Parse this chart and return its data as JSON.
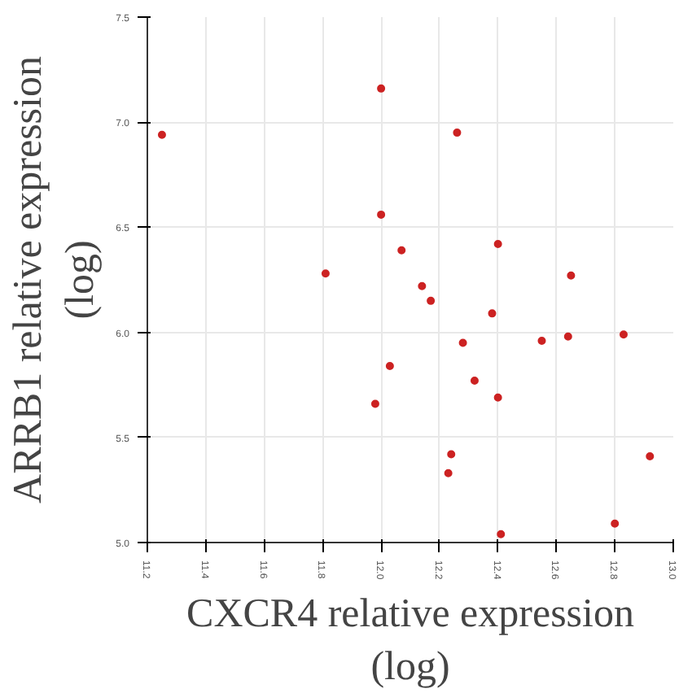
{
  "chart_data": {
    "type": "scatter",
    "xlabel": "CXCR4 relative expression\n(log)",
    "ylabel": "ARRB1 relative expression\n(log)",
    "x": [
      11.25,
      12.0,
      12.26,
      12.0,
      12.07,
      11.81,
      12.4,
      12.14,
      12.65,
      12.17,
      12.38,
      12.28,
      12.55,
      12.64,
      12.83,
      12.03,
      12.32,
      11.98,
      12.4,
      12.24,
      12.23,
      12.92,
      12.8,
      12.41
    ],
    "values": [
      6.94,
      7.16,
      6.95,
      6.56,
      6.39,
      6.28,
      6.42,
      6.22,
      6.27,
      6.15,
      6.09,
      5.95,
      5.96,
      5.98,
      5.99,
      5.84,
      5.77,
      5.66,
      5.69,
      5.42,
      5.33,
      5.41,
      5.09,
      5.04
    ],
    "color": "#cc2222",
    "marker": "circle",
    "xlim": [
      11.2,
      13.0
    ],
    "ylim": [
      5.0,
      7.5
    ],
    "xticks": [
      {
        "value": 11.2,
        "label": "11.2"
      },
      {
        "value": 11.4,
        "label": "11.4"
      },
      {
        "value": 11.6,
        "label": "11.6"
      },
      {
        "value": 11.8,
        "label": "11.8"
      },
      {
        "value": 12.0,
        "label": "12.0"
      },
      {
        "value": 12.2,
        "label": "12.2"
      },
      {
        "value": 12.4,
        "label": "12.4"
      },
      {
        "value": 12.6,
        "label": "12.6"
      },
      {
        "value": 12.8,
        "label": "12.8"
      },
      {
        "value": 13.0,
        "label": "13.0"
      }
    ],
    "yticks": [
      {
        "value": 5.0,
        "label": "5.0"
      },
      {
        "value": 5.5,
        "label": "5.5"
      },
      {
        "value": 6.0,
        "label": "6.0"
      },
      {
        "value": 6.5,
        "label": "6.5"
      },
      {
        "value": 7.0,
        "label": "7.0"
      },
      {
        "value": 7.5,
        "label": "7.5"
      }
    ],
    "grid": true
  }
}
